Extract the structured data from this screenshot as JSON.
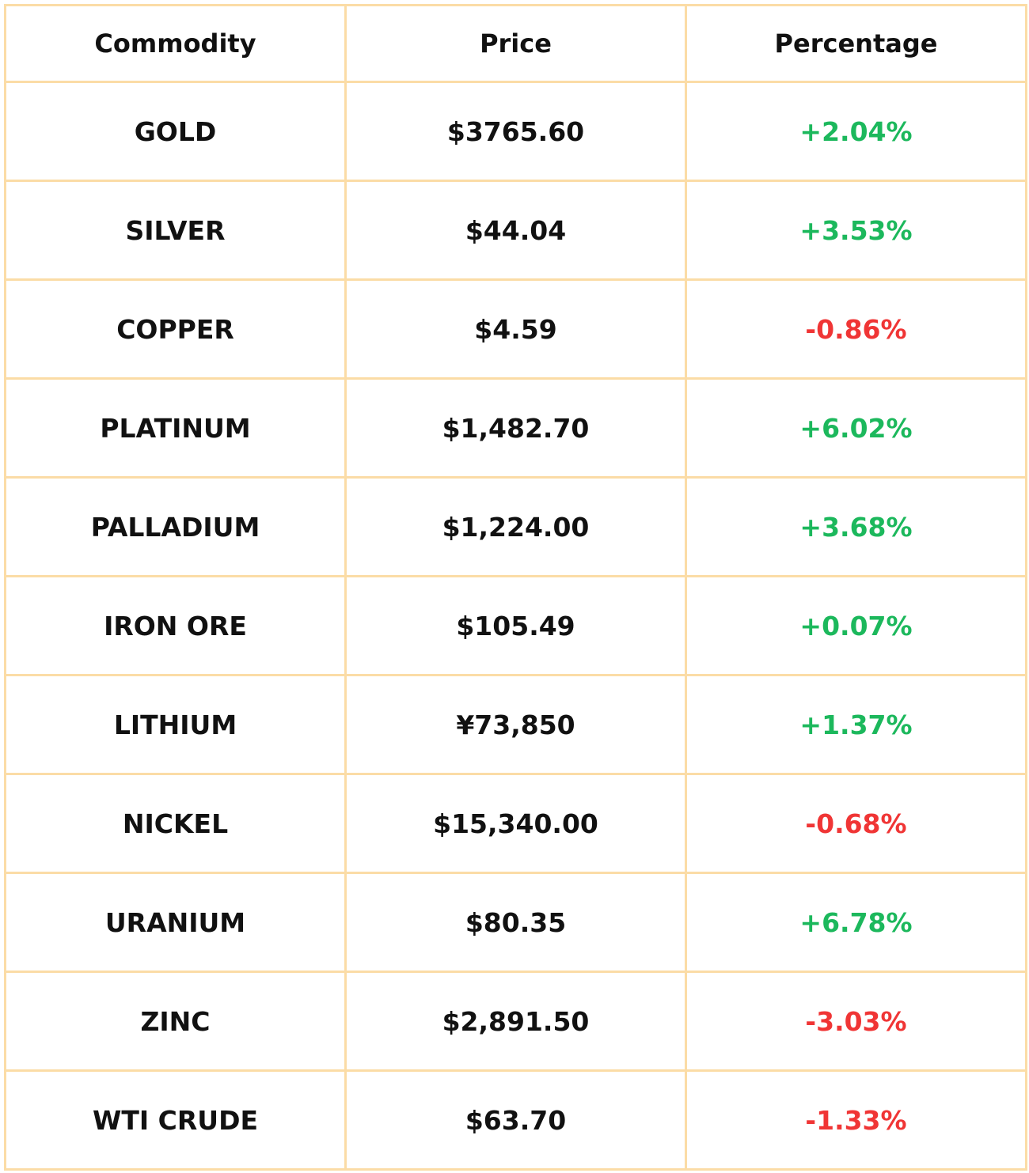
{
  "table": {
    "headers": [
      "Commodity",
      "Price",
      "Percentage"
    ],
    "rows": [
      [
        "GOLD",
        "$3765.60",
        "+2.04%"
      ],
      [
        "SILVER",
        "$44.04",
        "+3.53%"
      ],
      [
        "COPPER",
        "$4.59",
        "-0.86%"
      ],
      [
        "PLATINUM",
        "$1,482.70",
        "+6.02%"
      ],
      [
        "PALLADIUM",
        "$1,224.00",
        "+3.68%"
      ],
      [
        "IRON ORE",
        "$105.49",
        "+0.07%"
      ],
      [
        "LITHIUM",
        "¥73,850",
        "+1.37%"
      ],
      [
        "NICKEL",
        "$15,340.00",
        "-0.68%"
      ],
      [
        "URANIUM",
        "$80.35",
        "+6.78%"
      ],
      [
        "ZINC",
        "$2,891.50",
        "-3.03%"
      ],
      [
        "WTI CRUDE",
        "$63.70",
        "-1.33%"
      ]
    ]
  }
}
